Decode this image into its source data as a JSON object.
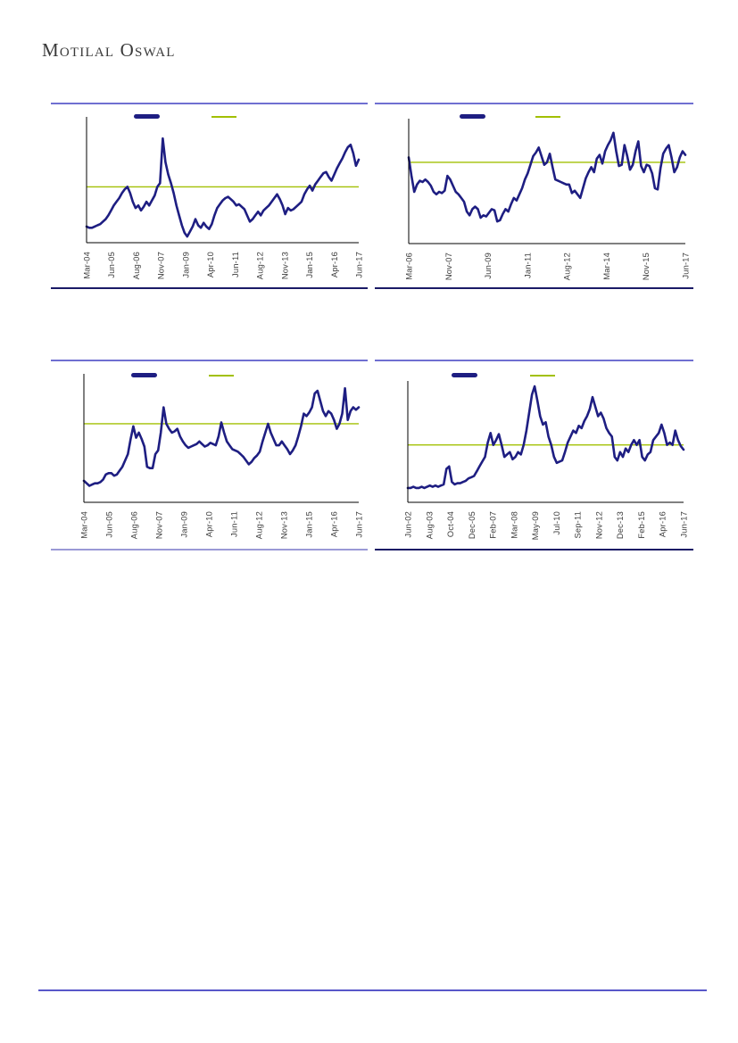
{
  "header": {
    "brand": "Motilal Oswal"
  },
  "colors": {
    "series_navy": "#1e1e82",
    "average_green": "#a2c004",
    "axis_black": "#000000",
    "panel_border_top": "#6f6fd1",
    "panel_border_bottom_dark": "#1a1a66",
    "panel_border_bottom_light": "#9a99d6",
    "footer_rule": "#5857c9",
    "tick_text": "#3b3b3b"
  },
  "chart_data": [
    {
      "type": "line",
      "position": "top-left",
      "x_tick_labels": [
        "Mar-04",
        "Jun-05",
        "Aug-06",
        "Nov-07",
        "Jan-09",
        "Apr-10",
        "Jun-11",
        "Aug-12",
        "Nov-13",
        "Jan-15",
        "Apr-16",
        "Jun-17"
      ],
      "y_axis": {
        "tick_labels_visible": false,
        "range": [
          0,
          100
        ]
      },
      "legend": {
        "visible": true,
        "labels_visible": false
      },
      "average_line": {
        "value": 45,
        "color": "#a2c004"
      },
      "series": [
        {
          "name": "series",
          "color": "#1e1e82",
          "values": [
            13,
            12,
            12,
            13,
            14,
            15,
            17,
            19,
            22,
            26,
            30,
            33,
            36,
            40,
            43,
            45,
            40,
            33,
            28,
            30,
            26,
            29,
            33,
            30,
            34,
            38,
            45,
            48,
            84,
            65,
            55,
            48,
            40,
            30,
            22,
            14,
            8,
            5,
            9,
            13,
            19,
            14,
            12,
            16,
            13,
            11,
            15,
            22,
            28,
            31,
            34,
            36,
            37,
            35,
            33,
            30,
            31,
            29,
            27,
            22,
            17,
            19,
            22,
            25,
            22,
            26,
            28,
            30,
            33,
            36,
            39,
            35,
            30,
            23,
            28,
            26,
            27,
            29,
            31,
            33,
            39,
            43,
            46,
            42,
            47,
            50,
            53,
            56,
            57,
            53,
            50,
            55,
            60,
            64,
            68,
            73,
            77,
            79,
            72,
            62,
            67
          ]
        }
      ]
    },
    {
      "type": "line",
      "position": "top-right",
      "x_tick_labels": [
        "Mar-06",
        "Nov-07",
        "Jun-09",
        "Jan-11",
        "Aug-12",
        "Mar-14",
        "Nov-15",
        "Jun-17"
      ],
      "y_axis": {
        "tick_labels_visible": false,
        "range": [
          0,
          100
        ]
      },
      "legend": {
        "visible": true,
        "labels_visible": false
      },
      "average_line": {
        "value": 66,
        "color": "#a2c004"
      },
      "series": [
        {
          "name": "series",
          "color": "#1e1e82",
          "values": [
            70,
            55,
            42,
            48,
            51,
            50,
            52,
            50,
            47,
            42,
            40,
            42,
            41,
            43,
            55,
            52,
            47,
            42,
            40,
            37,
            34,
            26,
            23,
            28,
            30,
            28,
            21,
            23,
            22,
            25,
            28,
            27,
            18,
            19,
            24,
            28,
            26,
            32,
            37,
            35,
            40,
            45,
            52,
            57,
            64,
            71,
            74,
            78,
            71,
            64,
            66,
            73,
            62,
            52,
            51,
            50,
            49,
            48,
            48,
            41,
            43,
            40,
            37,
            45,
            53,
            58,
            62,
            58,
            69,
            72,
            65,
            75,
            80,
            84,
            90,
            75,
            63,
            64,
            80,
            71,
            60,
            64,
            75,
            83,
            63,
            58,
            64,
            63,
            57,
            45,
            44,
            61,
            73,
            77,
            80,
            70,
            58,
            62,
            70,
            75,
            72
          ]
        }
      ]
    },
    {
      "type": "line",
      "position": "bottom-left",
      "x_tick_labels": [
        "Mar-04",
        "Jun-05",
        "Aug-06",
        "Nov-07",
        "Jan-09",
        "Apr-10",
        "Jun-11",
        "Aug-12",
        "Nov-13",
        "Jan-15",
        "Apr-16",
        "Jun-17"
      ],
      "y_axis": {
        "tick_labels_visible": false,
        "range": [
          0,
          100
        ]
      },
      "legend": {
        "visible": true,
        "labels_visible": false
      },
      "average_line": {
        "value": 62,
        "color": "#a2c004"
      },
      "series": [
        {
          "name": "series",
          "color": "#1e1e82",
          "values": [
            17,
            15,
            13,
            14,
            15,
            15,
            16,
            18,
            22,
            23,
            23,
            21,
            22,
            25,
            28,
            33,
            38,
            50,
            60,
            51,
            55,
            50,
            44,
            28,
            27,
            27,
            38,
            41,
            55,
            75,
            62,
            58,
            55,
            56,
            58,
            52,
            48,
            45,
            43,
            44,
            45,
            46,
            48,
            46,
            44,
            45,
            47,
            46,
            45,
            52,
            63,
            55,
            48,
            45,
            42,
            41,
            40,
            38,
            36,
            33,
            30,
            32,
            35,
            37,
            40,
            48,
            55,
            62,
            55,
            50,
            45,
            45,
            48,
            45,
            42,
            38,
            41,
            45,
            52,
            60,
            70,
            68,
            71,
            75,
            86,
            88,
            80,
            72,
            68,
            72,
            70,
            65,
            58,
            62,
            70,
            90,
            65,
            72,
            75,
            73,
            75
          ]
        }
      ]
    },
    {
      "type": "line",
      "position": "bottom-right",
      "x_tick_labels": [
        "Jun-02",
        "Aug-03",
        "Oct-04",
        "Dec-05",
        "Feb-07",
        "Mar-08",
        "May-09",
        "Jul-10",
        "Sep-11",
        "Nov-12",
        "Dec-13",
        "Feb-15",
        "Apr-16",
        "Jun-17"
      ],
      "y_axis": {
        "tick_labels_visible": false,
        "range": [
          0,
          100
        ]
      },
      "legend": {
        "visible": true,
        "labels_visible": false
      },
      "average_line": {
        "value": 48,
        "color": "#a2c004"
      },
      "series": [
        {
          "name": "series",
          "color": "#1e1e82",
          "values": [
            12,
            12,
            13,
            12,
            12,
            13,
            12,
            13,
            14,
            13,
            14,
            13,
            14,
            15,
            28,
            30,
            17,
            15,
            16,
            16,
            17,
            18,
            20,
            21,
            22,
            26,
            30,
            34,
            38,
            50,
            58,
            48,
            52,
            57,
            48,
            38,
            40,
            42,
            36,
            38,
            42,
            40,
            48,
            60,
            75,
            90,
            97,
            85,
            72,
            65,
            67,
            55,
            48,
            38,
            33,
            34,
            35,
            42,
            50,
            55,
            60,
            58,
            64,
            62,
            68,
            72,
            78,
            88,
            80,
            72,
            75,
            70,
            62,
            58,
            55,
            38,
            35,
            42,
            38,
            45,
            42,
            48,
            52,
            48,
            52,
            38,
            35,
            40,
            42,
            52,
            55,
            58,
            65,
            58,
            48,
            50,
            48,
            60,
            52,
            47,
            44
          ]
        }
      ]
    }
  ]
}
